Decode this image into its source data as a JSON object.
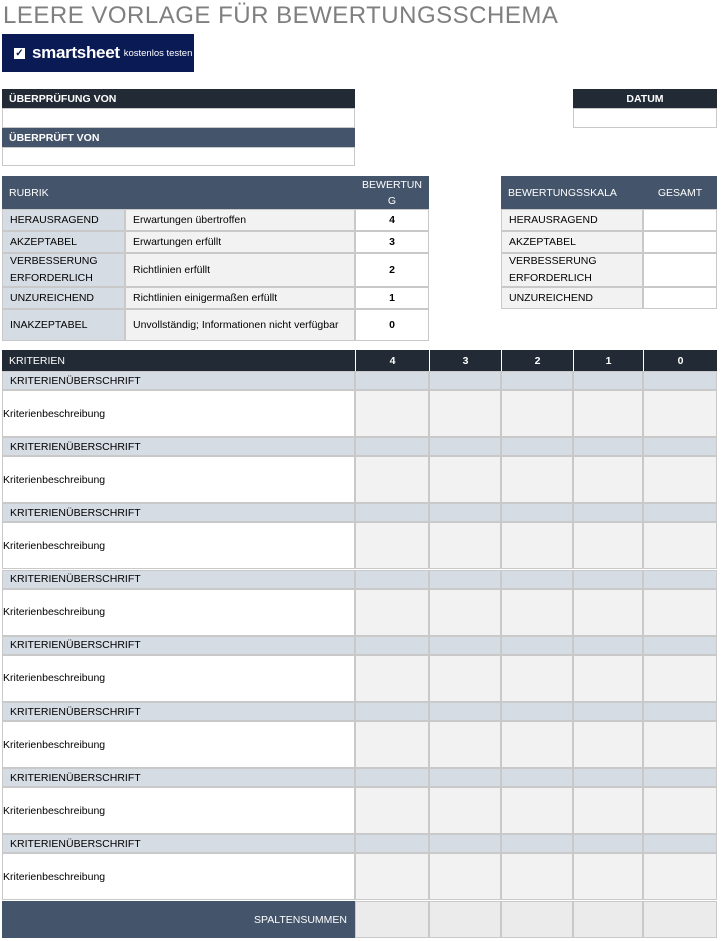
{
  "title": "LEERE VORLAGE FÜR BEWERTUNGSSCHEMA",
  "logo": {
    "brand": "smartsheet",
    "cta": "kostenlos testen"
  },
  "review": {
    "reviewed_by_label": "ÜBERPRÜFUNG VON",
    "reviewed_by_value": "",
    "reviewer_label": "ÜBERPRÜFT VON",
    "reviewer_value": "",
    "date_label": "DATUM",
    "date_value": ""
  },
  "rubric": {
    "header": "RUBRIK",
    "score_header": "BEWERTUNG",
    "rows": [
      {
        "level": "HERAUSRAGEND",
        "desc": "Erwartungen übertroffen",
        "score": "4"
      },
      {
        "level": "AKZEPTABEL",
        "desc": "Erwartungen erfüllt",
        "score": "3"
      },
      {
        "level": "VERBESSERUNG ERFORDERLICH",
        "desc": "Richtlinien erfüllt",
        "score": "2"
      },
      {
        "level": "UNZUREICHEND",
        "desc": "Richtlinien einigermaßen erfüllt",
        "score": "1"
      },
      {
        "level": "INAKZEPTABEL",
        "desc": "Unvollständig; Informationen nicht verfügbar",
        "score": "0"
      }
    ]
  },
  "scale": {
    "header": "BEWERTUNGSSKALA",
    "total_header": "GESAMT",
    "rows": [
      {
        "level": "HERAUSRAGEND",
        "total": ""
      },
      {
        "level": "AKZEPTABEL",
        "total": ""
      },
      {
        "level": "VERBESSERUNG ERFORDERLICH",
        "total": ""
      },
      {
        "level": "UNZUREICHEND",
        "total": ""
      }
    ]
  },
  "criteria": {
    "header": "KRITERIEN",
    "score_columns": [
      "4",
      "3",
      "2",
      "1",
      "0"
    ],
    "items": [
      {
        "heading": "KRITERIENÜBERSCHRIFT",
        "description": "Kriterienbeschreibung"
      },
      {
        "heading": "KRITERIENÜBERSCHRIFT",
        "description": "Kriterienbeschreibung"
      },
      {
        "heading": "KRITERIENÜBERSCHRIFT",
        "description": "Kriterienbeschreibung"
      },
      {
        "heading": "KRITERIENÜBERSCHRIFT",
        "description": "Kriterienbeschreibung"
      },
      {
        "heading": "KRITERIENÜBERSCHRIFT",
        "description": "Kriterienbeschreibung"
      },
      {
        "heading": "KRITERIENÜBERSCHRIFT",
        "description": "Kriterienbeschreibung"
      },
      {
        "heading": "KRITERIENÜBERSCHRIFT",
        "description": "Kriterienbeschreibung"
      },
      {
        "heading": "KRITERIENÜBERSCHRIFT",
        "description": "Kriterienbeschreibung"
      }
    ],
    "totals_label": "SPALTENSUMMEN"
  },
  "colors": {
    "dark": "#222b35",
    "header": "#44546a",
    "light": "#d6dce4",
    "grey": "#f2f2f2",
    "logo": "#0a1a54",
    "title": "#7f7f7f"
  }
}
